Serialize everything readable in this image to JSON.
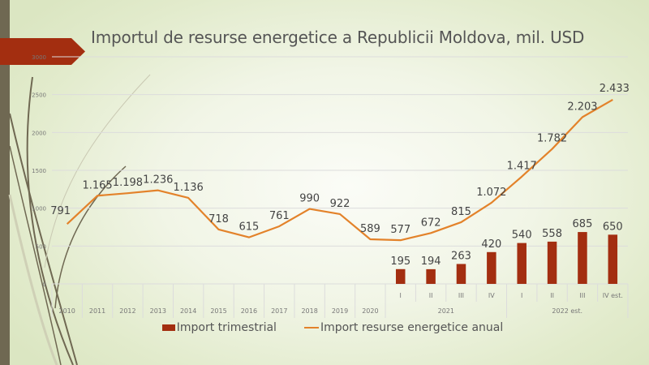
{
  "slide": {
    "title": "Importul de resurse energetice a Republicii Moldova, mil. USD"
  },
  "colors": {
    "bar": "#a32e10",
    "line": "#e3822a",
    "banner": "#a32e10",
    "strip": "#6f6852",
    "grid": "#dcdcdc",
    "text": "#555555"
  },
  "chart_data": {
    "type": "bar+line",
    "title": "Importul de resurse energetice a Republicii Moldova, mil. USD",
    "xlabel": "",
    "ylabel": "",
    "ylim": [
      0,
      3000
    ],
    "yticks": [
      "0",
      "500",
      "1000",
      "1500",
      "2000",
      "2500",
      "3000"
    ],
    "grid": true,
    "legend_position": "bottom",
    "categories": [
      {
        "label": "2010",
        "group": ""
      },
      {
        "label": "2011",
        "group": ""
      },
      {
        "label": "2012",
        "group": ""
      },
      {
        "label": "2013",
        "group": ""
      },
      {
        "label": "2014",
        "group": ""
      },
      {
        "label": "2015",
        "group": ""
      },
      {
        "label": "2016",
        "group": ""
      },
      {
        "label": "2017",
        "group": ""
      },
      {
        "label": "2018",
        "group": ""
      },
      {
        "label": "2019",
        "group": ""
      },
      {
        "label": "2020",
        "group": ""
      },
      {
        "label": "I",
        "group": "2021"
      },
      {
        "label": "II",
        "group": "2021"
      },
      {
        "label": "III",
        "group": "2021"
      },
      {
        "label": "IV",
        "group": "2021"
      },
      {
        "label": "I",
        "group": "2022 est."
      },
      {
        "label": "II",
        "group": "2022 est."
      },
      {
        "label": "III",
        "group": "2022 est."
      },
      {
        "label": "IV est.",
        "group": "2022 est."
      }
    ],
    "groups": [
      "2021",
      "2022 est."
    ],
    "series": [
      {
        "name": "Import trimestrial",
        "type": "bar",
        "values": [
          null,
          null,
          null,
          null,
          null,
          null,
          null,
          null,
          null,
          null,
          null,
          195,
          194,
          263,
          420,
          540,
          558,
          685,
          650
        ],
        "labels": [
          null,
          null,
          null,
          null,
          null,
          null,
          null,
          null,
          null,
          null,
          null,
          "195",
          "194",
          "263",
          "420",
          "540",
          "558",
          "685",
          "650"
        ]
      },
      {
        "name": "Import resurse energetice anual",
        "type": "line",
        "values": [
          791,
          1165,
          1198,
          1236,
          1136,
          718,
          615,
          761,
          990,
          922,
          589,
          577,
          672,
          815,
          1072,
          1417,
          1782,
          2203,
          2433
        ],
        "labels": [
          "791",
          "1.165",
          "1.198",
          "1.236",
          "1.136",
          "718",
          "615",
          "761",
          "990",
          "922",
          "589",
          "577",
          "672",
          "815",
          "1.072",
          "1.417",
          "1.782",
          "2.203",
          "2.433"
        ]
      }
    ]
  },
  "legend": {
    "items": [
      {
        "label": "Import trimestrial"
      },
      {
        "label": "Import resurse energetice anual"
      }
    ]
  }
}
